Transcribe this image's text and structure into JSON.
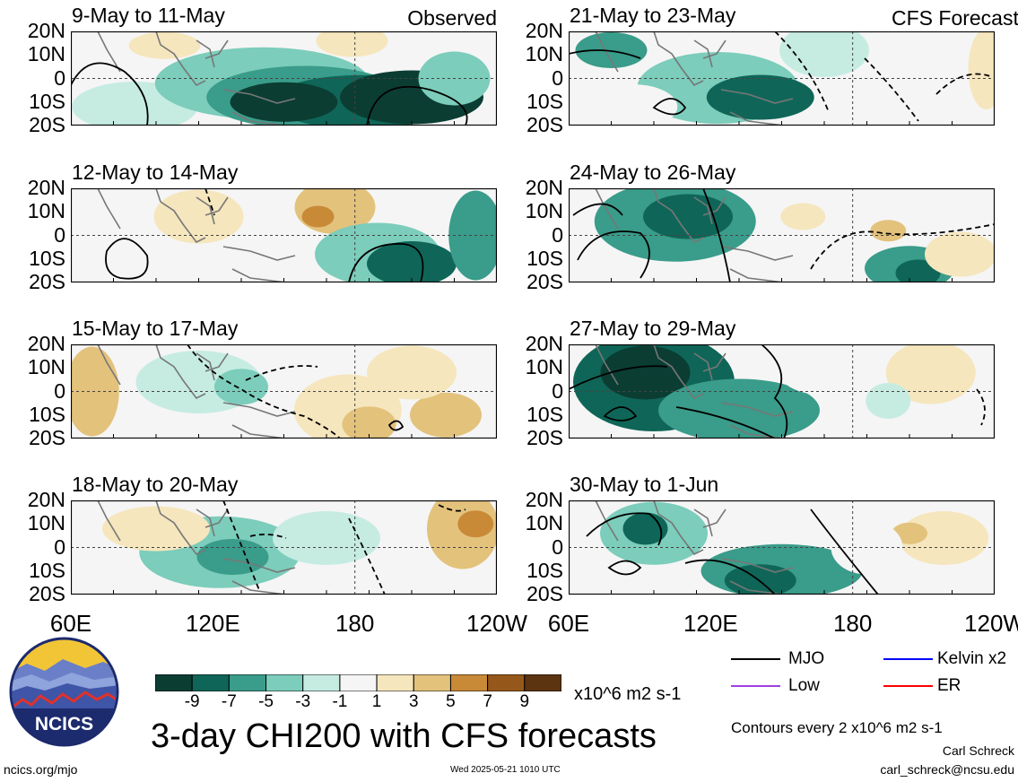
{
  "panels": [
    {
      "title": "9-May to 11-May",
      "tag": "Observed",
      "col": 0,
      "row": 0
    },
    {
      "title": "12-May to 14-May",
      "tag": "",
      "col": 0,
      "row": 1
    },
    {
      "title": "15-May to 17-May",
      "tag": "",
      "col": 0,
      "row": 2
    },
    {
      "title": "18-May to 20-May",
      "tag": "",
      "col": 0,
      "row": 3
    },
    {
      "title": "21-May to 23-May",
      "tag": "CFS Forecast",
      "col": 1,
      "row": 0
    },
    {
      "title": "24-May to 26-May",
      "tag": "",
      "col": 1,
      "row": 1
    },
    {
      "title": "27-May to 29-May",
      "tag": "",
      "col": 1,
      "row": 2
    },
    {
      "title": "30-May to 1-Jun",
      "tag": "",
      "col": 1,
      "row": 3
    }
  ],
  "lat_labels": [
    "20N",
    "10N",
    "0",
    "10S",
    "20S"
  ],
  "lon_labels_left": [
    "60E",
    "120E",
    "180",
    "120W"
  ],
  "lon_labels_right": [
    "60E",
    "120E",
    "180",
    "120W"
  ],
  "colorbar": {
    "ticks": [
      "-9",
      "-7",
      "-5",
      "-3",
      "-1",
      "1",
      "3",
      "5",
      "7",
      "9"
    ],
    "units": "x10^6 m2 s-1",
    "colors": [
      "#0b3d33",
      "#0f6658",
      "#3a9c8a",
      "#7ccdbb",
      "#c6ece2",
      "#f5f5f5",
      "#f5e6bd",
      "#e3c27c",
      "#c98a38",
      "#96581a",
      "#5c3410"
    ]
  },
  "main_title": "3-day CHI200 with CFS forecasts",
  "logo_text": "NCICS",
  "legend": {
    "items": [
      {
        "label": "MJO",
        "color": "#000000"
      },
      {
        "label": "Kelvin x2",
        "color": "#0000ff"
      },
      {
        "label": "Low",
        "color": "#a040e0"
      },
      {
        "label": "ER",
        "color": "#ff0000"
      }
    ],
    "contours": "Contours every 2 x10^6 m2 s-1"
  },
  "footer": {
    "url": "ncics.org/mjo",
    "timestamp": "Wed 2025-05-21 1010 UTC",
    "author": "Carl Schreck",
    "email": "carl_schreck@ncsu.edu"
  }
}
